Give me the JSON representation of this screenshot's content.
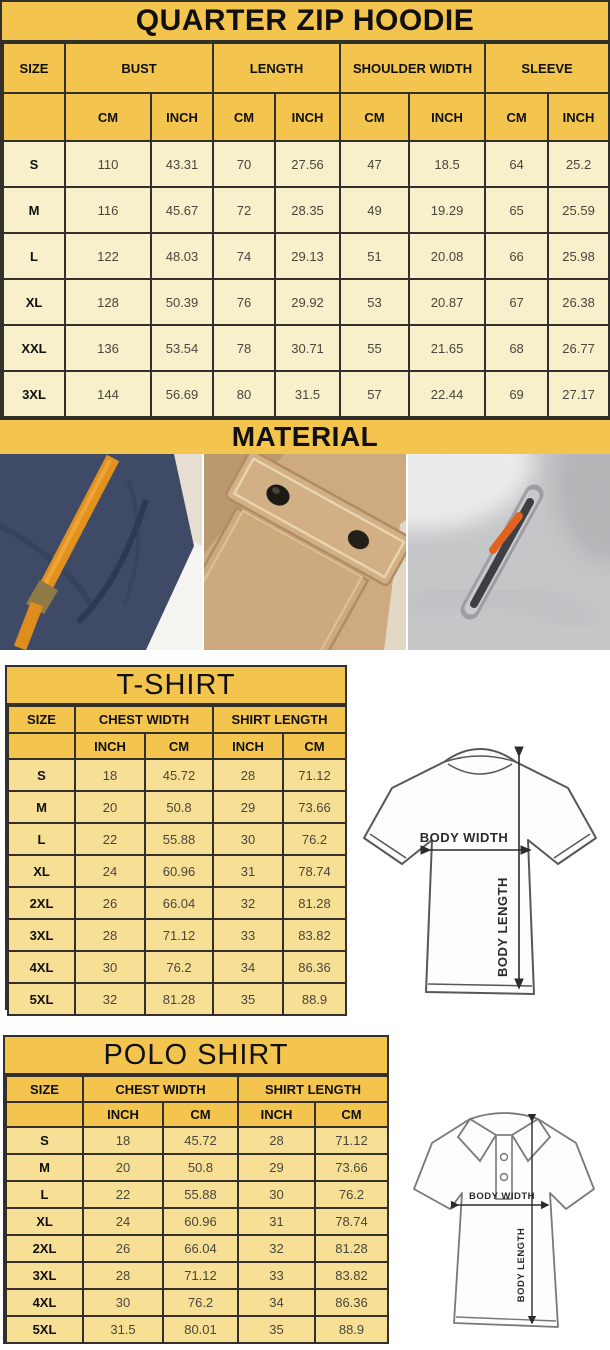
{
  "colors": {
    "band_yellow": "#F3C44E",
    "hoodie_row_cream": "#F8F0CA",
    "shirt_row_yellow": "#F7E096",
    "border_dark": "#33302B",
    "drawstring_orange": "#E2911F",
    "zipper_pull_orange": "#E06420",
    "navy_fabric": "#3E4A66",
    "khaki_fabric": "#CDAA80",
    "gray_fabric": "#C6C7C9"
  },
  "hoodie": {
    "title": "QUARTER ZIP HOODIE",
    "size_label": "SIZE",
    "groups": [
      {
        "label": "BUST"
      },
      {
        "label": "LENGTH"
      },
      {
        "label": "SHOULDER WIDTH"
      },
      {
        "label": "SLEEVE"
      }
    ],
    "units": [
      "CM",
      "INCH"
    ],
    "rows": [
      [
        "S",
        "110",
        "43.31",
        "70",
        "27.56",
        "47",
        "18.5",
        "64",
        "25.2"
      ],
      [
        "M",
        "116",
        "45.67",
        "72",
        "28.35",
        "49",
        "19.29",
        "65",
        "25.59"
      ],
      [
        "L",
        "122",
        "48.03",
        "74",
        "29.13",
        "51",
        "20.08",
        "66",
        "25.98"
      ],
      [
        "XL",
        "128",
        "50.39",
        "76",
        "29.92",
        "53",
        "20.87",
        "67",
        "26.38"
      ],
      [
        "XXL",
        "136",
        "53.54",
        "78",
        "30.71",
        "55",
        "21.65",
        "68",
        "26.77"
      ],
      [
        "3XL",
        "144",
        "56.69",
        "80",
        "31.5",
        "57",
        "22.44",
        "69",
        "27.17"
      ]
    ]
  },
  "material": {
    "title": "MATERIAL",
    "photos": [
      {
        "name": "navy-fleece-orange-drawstring-photo"
      },
      {
        "name": "khaki-snap-button-pocket-photo"
      },
      {
        "name": "gray-fleece-zipper-pocket-photo"
      }
    ]
  },
  "tshirt": {
    "title": "T-SHIRT",
    "size_label": "SIZE",
    "groups": [
      {
        "label": "CHEST WIDTH"
      },
      {
        "label": "SHIRT LENGTH"
      }
    ],
    "units": [
      "INCH",
      "CM"
    ],
    "rows": [
      [
        "S",
        "18",
        "45.72",
        "28",
        "71.12"
      ],
      [
        "M",
        "20",
        "50.8",
        "29",
        "73.66"
      ],
      [
        "L",
        "22",
        "55.88",
        "30",
        "76.2"
      ],
      [
        "XL",
        "24",
        "60.96",
        "31",
        "78.74"
      ],
      [
        "2XL",
        "26",
        "66.04",
        "32",
        "81.28"
      ],
      [
        "3XL",
        "28",
        "71.12",
        "33",
        "83.82"
      ],
      [
        "4XL",
        "30",
        "76.2",
        "34",
        "86.36"
      ],
      [
        "5XL",
        "32",
        "81.28",
        "35",
        "88.9"
      ]
    ],
    "diagram": {
      "width_label": "BODY WIDTH",
      "length_label": "BODY LENGTH"
    }
  },
  "polo": {
    "title": "POLO SHIRT",
    "size_label": "SIZE",
    "groups": [
      {
        "label": "CHEST WIDTH"
      },
      {
        "label": "SHIRT LENGTH"
      }
    ],
    "units": [
      "INCH",
      "CM"
    ],
    "rows": [
      [
        "S",
        "18",
        "45.72",
        "28",
        "71.12"
      ],
      [
        "M",
        "20",
        "50.8",
        "29",
        "73.66"
      ],
      [
        "L",
        "22",
        "55.88",
        "30",
        "76.2"
      ],
      [
        "XL",
        "24",
        "60.96",
        "31",
        "78.74"
      ],
      [
        "2XL",
        "26",
        "66.04",
        "32",
        "81.28"
      ],
      [
        "3XL",
        "28",
        "71.12",
        "33",
        "83.82"
      ],
      [
        "4XL",
        "30",
        "76.2",
        "34",
        "86.36"
      ],
      [
        "5XL",
        "31.5",
        "80.01",
        "35",
        "88.9"
      ]
    ],
    "diagram": {
      "width_label": "BODY WIDTH",
      "length_label": "BODY LENGTH"
    }
  }
}
